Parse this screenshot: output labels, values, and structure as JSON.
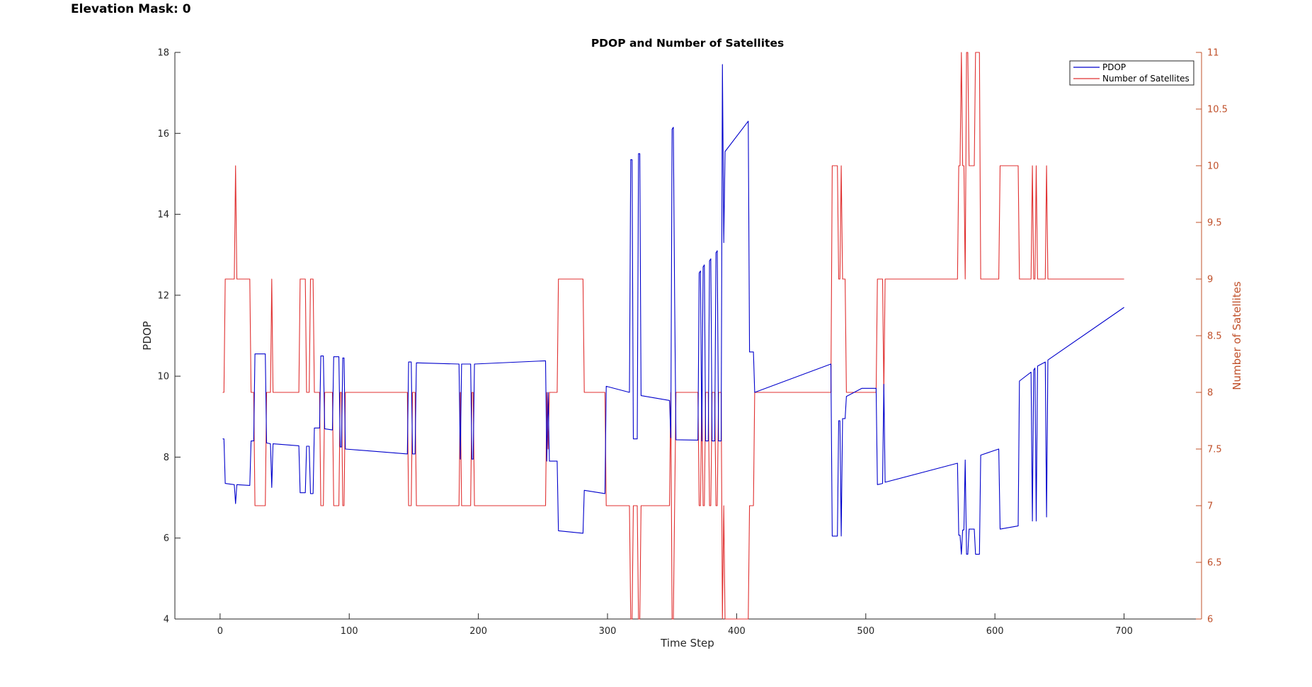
{
  "figure_header": {
    "text": "Elevation Mask: 0"
  },
  "colors": {
    "pdop": "#0000cc",
    "sats": "#e03030",
    "right_axis": "#c0502a",
    "axis": "#262626"
  },
  "chart_data": {
    "type": "line",
    "title": "PDOP and Number of Satellites",
    "xlabel": "Time Step",
    "ylabel": "PDOP",
    "ylabel_right": "Number of Satellites",
    "xlim": [
      -35,
      760
    ],
    "ylim": [
      4,
      18
    ],
    "ylim_right": [
      6,
      11
    ],
    "x_ticks": [
      0,
      100,
      200,
      300,
      400,
      500,
      600,
      700
    ],
    "y_ticks": [
      4,
      6,
      8,
      10,
      12,
      14,
      16,
      18
    ],
    "y_ticks_right": [
      "6",
      "6.5",
      "7",
      "7.5",
      "8",
      "8.5",
      "9",
      "9.5",
      "10",
      "10.5",
      "11"
    ],
    "grid": false,
    "legend": {
      "position": "top-right",
      "entries": [
        "PDOP",
        "Number of Satellites"
      ]
    },
    "series": [
      {
        "name": "PDOP",
        "axis": "left",
        "points": [
          [
            2,
            8.45
          ],
          [
            3,
            8.45
          ],
          [
            4,
            7.35
          ],
          [
            11,
            7.32
          ],
          [
            12,
            6.85
          ],
          [
            13,
            7.32
          ],
          [
            23,
            7.3
          ],
          [
            24,
            8.4
          ],
          [
            26,
            8.4
          ],
          [
            27,
            10.55
          ],
          [
            35,
            10.55
          ],
          [
            36,
            8.35
          ],
          [
            39,
            8.33
          ],
          [
            40,
            7.25
          ],
          [
            41,
            8.33
          ],
          [
            61,
            8.28
          ],
          [
            62,
            7.12
          ],
          [
            66,
            7.12
          ],
          [
            67,
            8.27
          ],
          [
            69,
            8.27
          ],
          [
            70,
            7.1
          ],
          [
            72,
            7.1
          ],
          [
            73,
            8.72
          ],
          [
            77,
            8.72
          ],
          [
            78,
            10.5
          ],
          [
            80,
            10.5
          ],
          [
            81,
            8.7
          ],
          [
            87,
            8.67
          ],
          [
            88,
            10.48
          ],
          [
            92,
            10.48
          ],
          [
            93,
            8.25
          ],
          [
            94,
            8.25
          ],
          [
            95,
            10.45
          ],
          [
            96,
            10.45
          ],
          [
            97,
            8.2
          ],
          [
            145,
            8.08
          ],
          [
            146,
            10.35
          ],
          [
            148,
            10.35
          ],
          [
            149,
            8.08
          ],
          [
            151,
            8.08
          ],
          [
            152,
            10.33
          ],
          [
            185,
            10.3
          ],
          [
            186,
            7.95
          ],
          [
            187,
            10.3
          ],
          [
            194,
            10.3
          ],
          [
            195,
            7.95
          ],
          [
            196,
            7.95
          ],
          [
            197,
            10.3
          ],
          [
            252,
            10.38
          ],
          [
            253,
            7.9
          ],
          [
            254,
            9.6
          ],
          [
            255,
            7.9
          ],
          [
            261,
            7.9
          ],
          [
            262,
            6.18
          ],
          [
            281,
            6.12
          ],
          [
            282,
            7.18
          ],
          [
            298,
            7.1
          ],
          [
            299,
            9.75
          ],
          [
            317,
            9.6
          ],
          [
            318,
            15.35
          ],
          [
            319,
            15.35
          ],
          [
            320,
            8.45
          ],
          [
            323,
            8.45
          ],
          [
            324,
            15.5
          ],
          [
            325,
            15.5
          ],
          [
            326,
            9.52
          ],
          [
            348,
            9.4
          ],
          [
            349,
            8.48
          ],
          [
            350,
            16.1
          ],
          [
            351,
            16.15
          ],
          [
            352,
            11.95
          ],
          [
            353,
            8.43
          ],
          [
            370,
            8.42
          ],
          [
            371,
            12.55
          ],
          [
            372,
            12.6
          ],
          [
            373,
            8.4
          ],
          [
            374,
            12.7
          ],
          [
            375,
            12.75
          ],
          [
            376,
            8.4
          ],
          [
            378,
            8.4
          ],
          [
            379,
            12.85
          ],
          [
            380,
            12.9
          ],
          [
            381,
            8.4
          ],
          [
            383,
            8.4
          ],
          [
            384,
            13.05
          ],
          [
            385,
            13.1
          ],
          [
            386,
            8.4
          ],
          [
            388,
            8.4
          ],
          [
            389,
            17.7
          ],
          [
            390,
            13.3
          ],
          [
            391,
            15.55
          ],
          [
            409,
            16.3
          ],
          [
            410,
            10.6
          ],
          [
            413,
            10.6
          ],
          [
            414,
            9.6
          ],
          [
            473,
            10.3
          ],
          [
            474,
            6.05
          ],
          [
            478,
            6.05
          ],
          [
            479,
            8.9
          ],
          [
            480,
            8.9
          ],
          [
            481,
            6.05
          ],
          [
            482,
            8.95
          ],
          [
            484,
            8.95
          ],
          [
            485,
            9.5
          ],
          [
            497,
            9.7
          ],
          [
            508,
            9.7
          ],
          [
            509,
            7.32
          ],
          [
            513,
            7.35
          ],
          [
            514,
            9.8
          ],
          [
            515,
            7.38
          ],
          [
            571,
            7.85
          ],
          [
            572,
            6.07
          ],
          [
            573,
            6.07
          ],
          [
            574,
            5.6
          ],
          [
            575,
            6.2
          ],
          [
            576,
            6.2
          ],
          [
            577,
            7.93
          ],
          [
            578,
            5.6
          ],
          [
            579,
            5.6
          ],
          [
            580,
            6.22
          ],
          [
            584,
            6.22
          ],
          [
            585,
            5.6
          ],
          [
            588,
            5.6
          ],
          [
            589,
            8.05
          ],
          [
            603,
            8.2
          ],
          [
            604,
            6.22
          ],
          [
            618,
            6.3
          ],
          [
            619,
            9.88
          ],
          [
            628,
            10.1
          ],
          [
            629,
            6.42
          ],
          [
            630,
            10.15
          ],
          [
            631,
            10.2
          ],
          [
            632,
            6.42
          ],
          [
            633,
            10.25
          ],
          [
            639,
            10.35
          ],
          [
            640,
            6.52
          ],
          [
            641,
            10.4
          ],
          [
            700,
            11.7
          ]
        ]
      },
      {
        "name": "Number of Satellites",
        "axis": "right",
        "points": [
          [
            2,
            8
          ],
          [
            3,
            8
          ],
          [
            4,
            9
          ],
          [
            11,
            9
          ],
          [
            12,
            10
          ],
          [
            13,
            9
          ],
          [
            23,
            9
          ],
          [
            24,
            8
          ],
          [
            26,
            8
          ],
          [
            27,
            7
          ],
          [
            35,
            7
          ],
          [
            36,
            8
          ],
          [
            39,
            8
          ],
          [
            40,
            9
          ],
          [
            41,
            8
          ],
          [
            61,
            8
          ],
          [
            62,
            9
          ],
          [
            66,
            9
          ],
          [
            67,
            8
          ],
          [
            69,
            8
          ],
          [
            70,
            9
          ],
          [
            72,
            9
          ],
          [
            73,
            8
          ],
          [
            77,
            8
          ],
          [
            78,
            7
          ],
          [
            80,
            7
          ],
          [
            81,
            8
          ],
          [
            87,
            8
          ],
          [
            88,
            7
          ],
          [
            92,
            7
          ],
          [
            93,
            8
          ],
          [
            94,
            8
          ],
          [
            95,
            7
          ],
          [
            96,
            7
          ],
          [
            97,
            8
          ],
          [
            145,
            8
          ],
          [
            146,
            7
          ],
          [
            148,
            7
          ],
          [
            149,
            8
          ],
          [
            151,
            8
          ],
          [
            152,
            7
          ],
          [
            185,
            7
          ],
          [
            186,
            8
          ],
          [
            187,
            7
          ],
          [
            194,
            7
          ],
          [
            195,
            8
          ],
          [
            196,
            8
          ],
          [
            197,
            7
          ],
          [
            252,
            7
          ],
          [
            253,
            8
          ],
          [
            254,
            7.5
          ],
          [
            255,
            8
          ],
          [
            261,
            8
          ],
          [
            262,
            9
          ],
          [
            281,
            9
          ],
          [
            282,
            8
          ],
          [
            298,
            8
          ],
          [
            299,
            7
          ],
          [
            317,
            7
          ],
          [
            318,
            6
          ],
          [
            319,
            6
          ],
          [
            320,
            7
          ],
          [
            323,
            7
          ],
          [
            324,
            6
          ],
          [
            325,
            6
          ],
          [
            326,
            7
          ],
          [
            348,
            7
          ],
          [
            349,
            8
          ],
          [
            350,
            6
          ],
          [
            351,
            6
          ],
          [
            352,
            7
          ],
          [
            353,
            8
          ],
          [
            370,
            8
          ],
          [
            371,
            7
          ],
          [
            372,
            7
          ],
          [
            373,
            8
          ],
          [
            374,
            7
          ],
          [
            375,
            7
          ],
          [
            376,
            8
          ],
          [
            378,
            8
          ],
          [
            379,
            7
          ],
          [
            380,
            7
          ],
          [
            381,
            8
          ],
          [
            383,
            8
          ],
          [
            384,
            7
          ],
          [
            385,
            7
          ],
          [
            386,
            8
          ],
          [
            388,
            8
          ],
          [
            389,
            6
          ],
          [
            390,
            7
          ],
          [
            391,
            6
          ],
          [
            409,
            6
          ],
          [
            410,
            7
          ],
          [
            413,
            7
          ],
          [
            414,
            8
          ],
          [
            473,
            8
          ],
          [
            474,
            10
          ],
          [
            478,
            10
          ],
          [
            479,
            9
          ],
          [
            480,
            9
          ],
          [
            481,
            10
          ],
          [
            482,
            9
          ],
          [
            484,
            9
          ],
          [
            485,
            8
          ],
          [
            497,
            8
          ],
          [
            508,
            8
          ],
          [
            509,
            9
          ],
          [
            513,
            9
          ],
          [
            514,
            8
          ],
          [
            515,
            9
          ],
          [
            571,
            9
          ],
          [
            572,
            10
          ],
          [
            573,
            10
          ],
          [
            574,
            11
          ],
          [
            575,
            10
          ],
          [
            576,
            10
          ],
          [
            577,
            9
          ],
          [
            578,
            11
          ],
          [
            579,
            11
          ],
          [
            580,
            10
          ],
          [
            584,
            10
          ],
          [
            585,
            11
          ],
          [
            588,
            11
          ],
          [
            589,
            9
          ],
          [
            603,
            9
          ],
          [
            604,
            10
          ],
          [
            618,
            10
          ],
          [
            619,
            9
          ],
          [
            628,
            9
          ],
          [
            629,
            10
          ],
          [
            630,
            9
          ],
          [
            631,
            9
          ],
          [
            632,
            10
          ],
          [
            633,
            9
          ],
          [
            639,
            9
          ],
          [
            640,
            10
          ],
          [
            641,
            9
          ],
          [
            700,
            9
          ]
        ]
      }
    ]
  }
}
